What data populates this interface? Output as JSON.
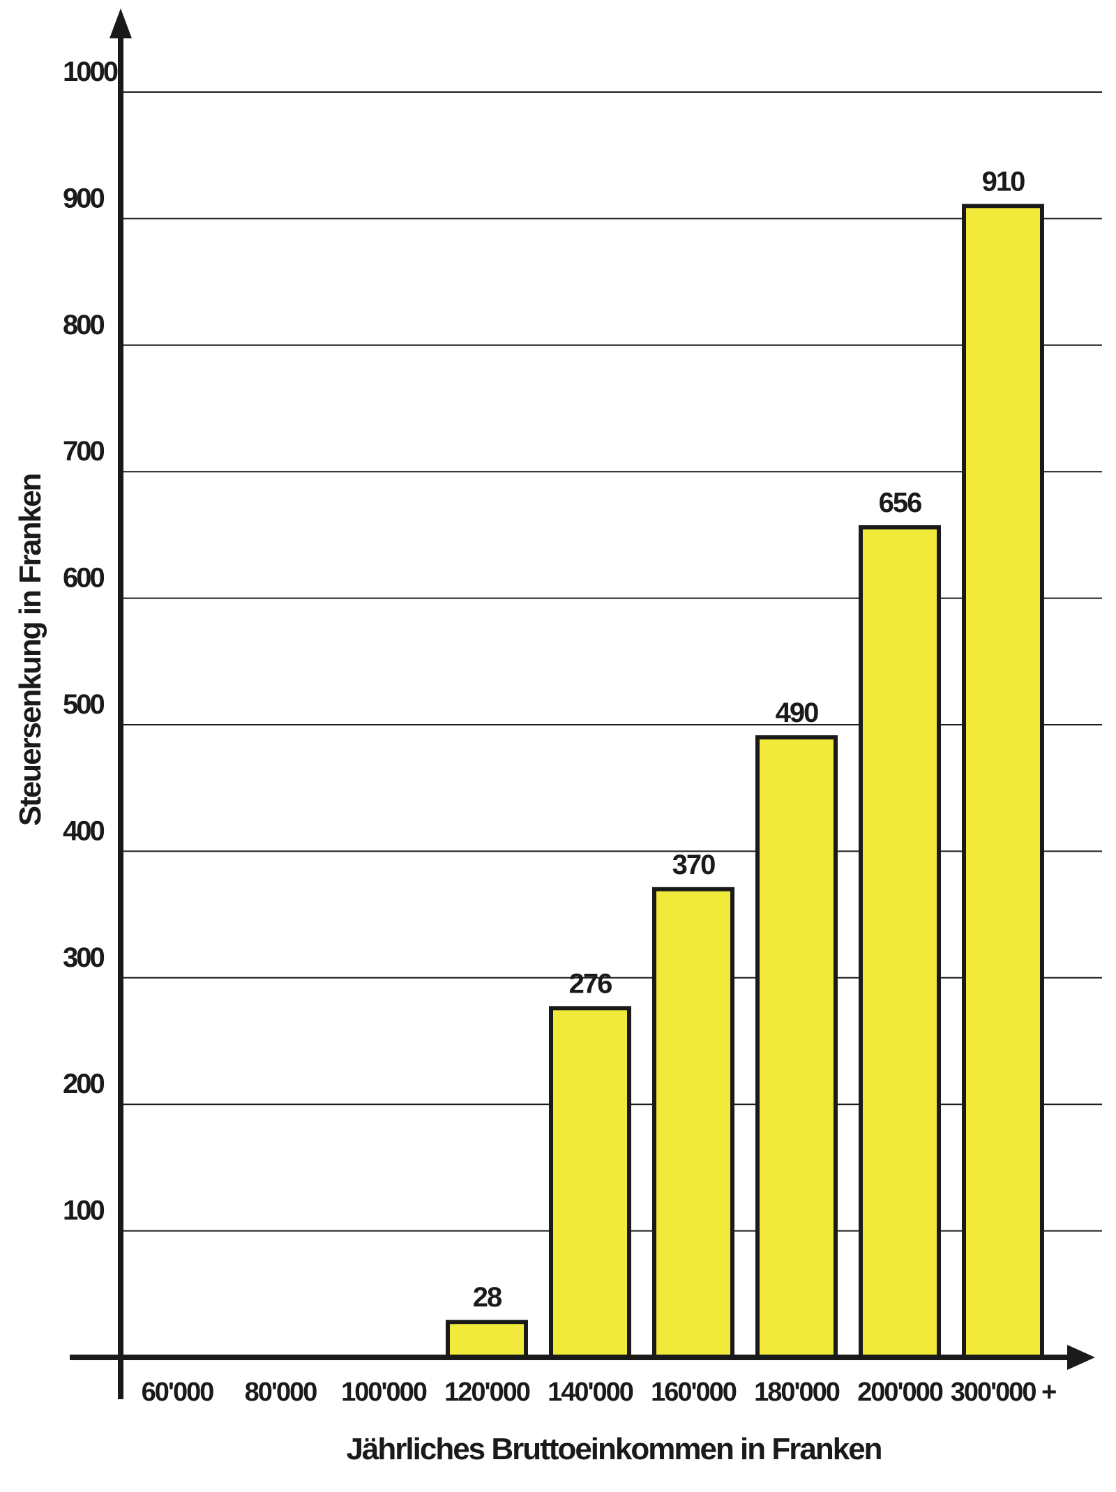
{
  "chart_data": {
    "type": "bar",
    "categories": [
      "60'000",
      "80'000",
      "100'000",
      "120'000",
      "140'000",
      "160'000",
      "180'000",
      "200'000",
      "300'000 +"
    ],
    "values": [
      0,
      0,
      0,
      28,
      276,
      370,
      490,
      656,
      910
    ],
    "data_labels": [
      "",
      "",
      "",
      "28",
      "276",
      "370",
      "490",
      "656",
      "910"
    ],
    "title": "",
    "xlabel": "Jährliches Bruttoeinkommen in Franken",
    "ylabel": "Steuersenkung in Franken",
    "ylim": [
      0,
      1000
    ],
    "yticks": [
      100,
      200,
      300,
      400,
      500,
      600,
      700,
      800,
      900,
      1000
    ],
    "grid": true,
    "legend": "none",
    "colors": {
      "bar_fill": "#f2ea3a",
      "bar_stroke": "#1a1a1a",
      "axis": "#1a1a1a",
      "grid": "#1a1a1a"
    }
  }
}
